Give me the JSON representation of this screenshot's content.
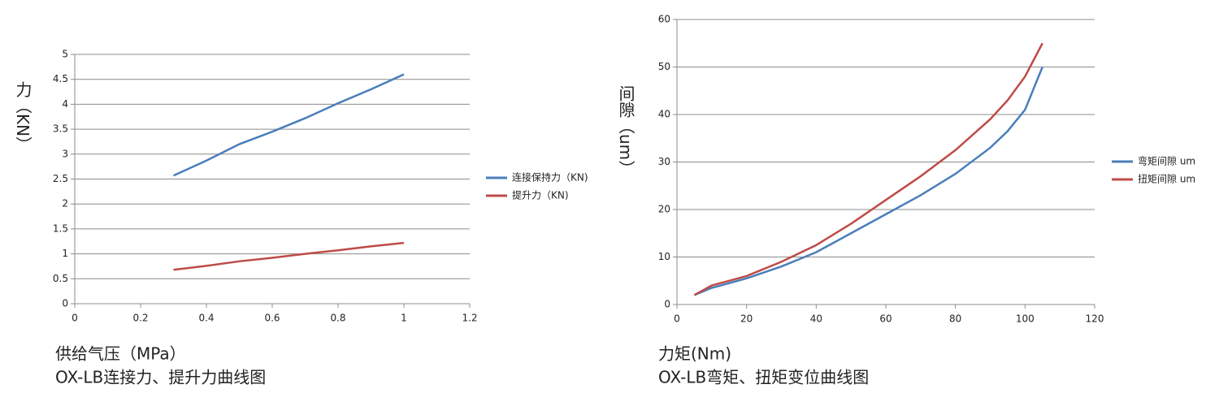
{
  "chart_data": [
    {
      "type": "line",
      "title": "OX-LB连接力、提升力曲线图",
      "x_label": "供给气压（MPa）",
      "y_label": "力（KN）",
      "x": [
        0.3,
        0.4,
        0.5,
        0.6,
        0.7,
        0.8,
        0.9,
        1.0
      ],
      "series": [
        {
          "name": "连接保持力（KN)",
          "color": "#4a7ebb",
          "values": [
            2.57,
            2.87,
            3.2,
            3.45,
            3.72,
            4.02,
            4.3,
            4.6
          ]
        },
        {
          "name": "提升力（KN)",
          "color": "#be4b48",
          "values": [
            0.68,
            0.76,
            0.85,
            0.92,
            1.0,
            1.07,
            1.15,
            1.22
          ]
        }
      ],
      "xlim": [
        0,
        1.2
      ],
      "xticks": [
        0,
        0.2,
        0.4,
        0.6,
        0.8,
        1,
        1.2
      ],
      "ylim": [
        0,
        5
      ],
      "yticks": [
        0,
        0.5,
        1,
        1.5,
        2,
        2.5,
        3,
        3.5,
        4,
        4.5,
        5
      ],
      "grid": true,
      "legend": "right"
    },
    {
      "type": "line",
      "title": "OX-LB弯矩、扭矩变位曲线图",
      "x_label": "力矩(Nm)",
      "y_label": "间隙（um）",
      "x": [
        5,
        10,
        20,
        30,
        40,
        50,
        60,
        70,
        80,
        90,
        95,
        100,
        105
      ],
      "series": [
        {
          "name": "弯矩间隙 um",
          "color": "#4a7ebb",
          "values": [
            2,
            3.5,
            5.5,
            8,
            11,
            15,
            19,
            23,
            27.5,
            33,
            36.5,
            41,
            50
          ]
        },
        {
          "name": "扭矩间隙 um",
          "color": "#be4b48",
          "values": [
            2,
            4,
            6,
            9,
            12.5,
            17,
            22,
            27,
            32.5,
            39,
            43,
            48,
            55
          ]
        }
      ],
      "xlim": [
        0,
        120
      ],
      "xticks": [
        0,
        20,
        40,
        60,
        80,
        100,
        120
      ],
      "ylim": [
        0,
        60
      ],
      "yticks": [
        0,
        10,
        20,
        30,
        40,
        50,
        60
      ],
      "grid": true,
      "legend": "right"
    }
  ]
}
